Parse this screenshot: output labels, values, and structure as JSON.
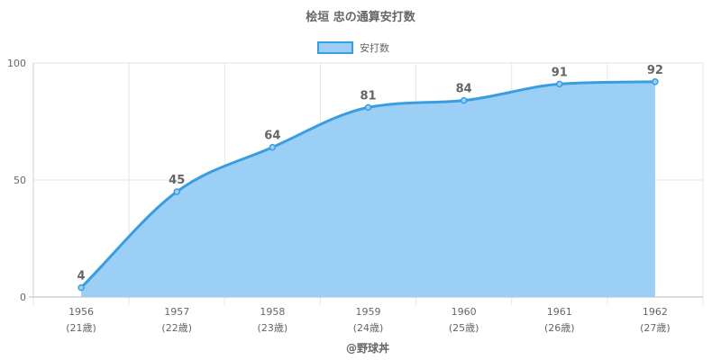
{
  "chart_data": {
    "type": "area",
    "title": "桧垣 忠の通算安打数",
    "legend": {
      "label": "安打数",
      "placement": "top-center"
    },
    "categories": [
      "1956",
      "1957",
      "1958",
      "1959",
      "1960",
      "1961",
      "1962"
    ],
    "category_sublabels": [
      "(21歳)",
      "(22歳)",
      "(23歳)",
      "(24歳)",
      "(25歳)",
      "(26歳)",
      "(27歳)"
    ],
    "series": [
      {
        "name": "安打数",
        "values": [
          4,
          45,
          64,
          81,
          84,
          91,
          92
        ]
      }
    ],
    "ylim": [
      0,
      100
    ],
    "yticks": [
      0,
      50,
      100
    ],
    "grid": true,
    "data_labels": true,
    "colors": {
      "line": "#3a9de0",
      "fill": "#9bcff5",
      "point": "#3a9de0"
    }
  },
  "footer": {
    "credit": "@野球丼"
  }
}
